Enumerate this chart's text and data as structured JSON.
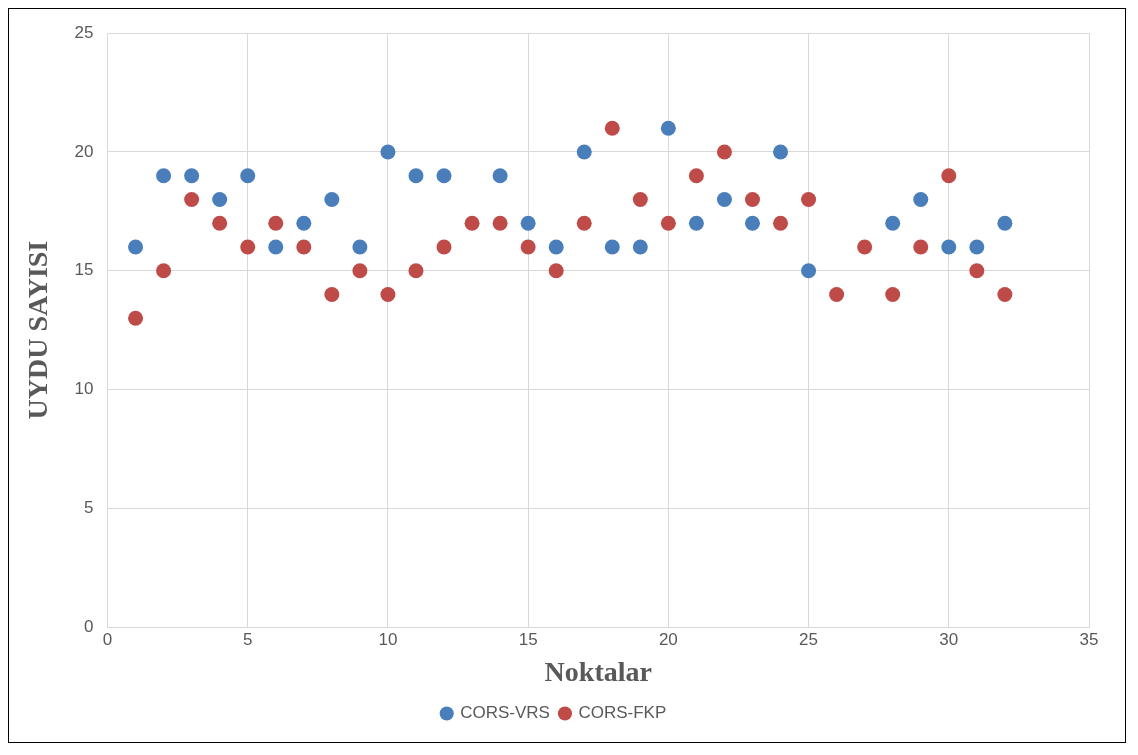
{
  "chart_data": {
    "type": "scatter",
    "xlabel": "Noktalar",
    "ylabel": "UYDU SAYISI",
    "x": [
      1,
      2,
      3,
      4,
      5,
      6,
      7,
      8,
      9,
      10,
      11,
      12,
      13,
      14,
      15,
      16,
      17,
      18,
      19,
      20,
      21,
      22,
      23,
      24,
      25,
      26,
      27,
      28,
      29,
      30,
      31,
      32
    ],
    "series": [
      {
        "name": "CORS-VRS",
        "color": "#4a7ebb",
        "values": [
          16,
          19,
          19,
          18,
          19,
          16,
          17,
          18,
          16,
          20,
          19,
          19,
          null,
          19,
          17,
          16,
          20,
          16,
          16,
          21,
          17,
          18,
          17,
          20,
          15,
          null,
          null,
          17,
          18,
          16,
          16,
          17
        ]
      },
      {
        "name": "CORS-FKP",
        "color": "#be4b48",
        "values": [
          13,
          15,
          18,
          17,
          16,
          17,
          16,
          14,
          15,
          14,
          15,
          16,
          17,
          17,
          16,
          15,
          17,
          21,
          18,
          17,
          19,
          20,
          18,
          17,
          18,
          14,
          16,
          14,
          16,
          19,
          15,
          14
        ]
      }
    ],
    "xlim": [
      0,
      35
    ],
    "xticks": [
      0,
      5,
      10,
      15,
      20,
      25,
      30,
      35
    ],
    "ylim": [
      0,
      25
    ],
    "yticks": [
      0,
      5,
      10,
      15,
      20,
      25
    ],
    "grid": true,
    "legend": "bottom",
    "marker": "circle"
  }
}
